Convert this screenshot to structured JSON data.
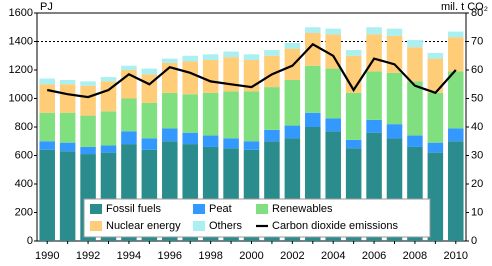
{
  "chart_data": {
    "type": "stacked_bar_line",
    "y_label": "PJ",
    "y2_label": "mil. t CO₂",
    "categories": [
      "1990",
      null,
      "1992",
      null,
      "1994",
      null,
      "1996",
      null,
      "1998",
      null,
      "2000",
      null,
      "2002",
      null,
      "2004",
      null,
      "2006",
      null,
      "2008",
      null,
      "2010"
    ],
    "series": [
      {
        "name": "Fossil fuels",
        "color": "#2a8c8c",
        "values": [
          640,
          630,
          610,
          620,
          680,
          640,
          700,
          680,
          660,
          650,
          640,
          700,
          720,
          800,
          770,
          650,
          760,
          720,
          660,
          620,
          700
        ]
      },
      {
        "name": "Peat",
        "color": "#3399ff",
        "values": [
          60,
          60,
          50,
          50,
          90,
          80,
          90,
          80,
          80,
          70,
          60,
          80,
          90,
          100,
          90,
          60,
          90,
          100,
          80,
          70,
          90
        ]
      },
      {
        "name": "Renewables",
        "color": "#80e080",
        "values": [
          200,
          210,
          220,
          240,
          230,
          250,
          250,
          270,
          300,
          330,
          350,
          300,
          320,
          330,
          350,
          330,
          340,
          360,
          380,
          350,
          400
        ]
      },
      {
        "name": "Nuclear energy",
        "color": "#ffcc77",
        "values": [
          200,
          200,
          210,
          210,
          200,
          200,
          210,
          230,
          230,
          240,
          220,
          220,
          220,
          230,
          240,
          260,
          260,
          260,
          240,
          240,
          240
        ]
      },
      {
        "name": "Others",
        "color": "#aaf0f0",
        "values": [
          40,
          30,
          30,
          30,
          30,
          40,
          30,
          40,
          40,
          40,
          40,
          40,
          40,
          40,
          40,
          40,
          50,
          50,
          50,
          40,
          40
        ]
      },
      {
        "name": "Carbon dioxide emissions",
        "color": "#000000",
        "axis": "y2",
        "kind": "line",
        "values": [
          53,
          51.5,
          50.5,
          53,
          58.5,
          55,
          61,
          59,
          56,
          55,
          54,
          58.5,
          61.5,
          69,
          65,
          53,
          64,
          62,
          54.5,
          52,
          60
        ]
      }
    ],
    "ylim": [
      0,
      1600
    ],
    "yticks": [
      0,
      200,
      400,
      600,
      800,
      1000,
      1200,
      1400,
      1600
    ],
    "y2lim": [
      0,
      80
    ],
    "y2ticks": [
      0,
      10,
      20,
      30,
      40,
      50,
      60,
      70,
      80
    ],
    "reference_line": 1400
  }
}
